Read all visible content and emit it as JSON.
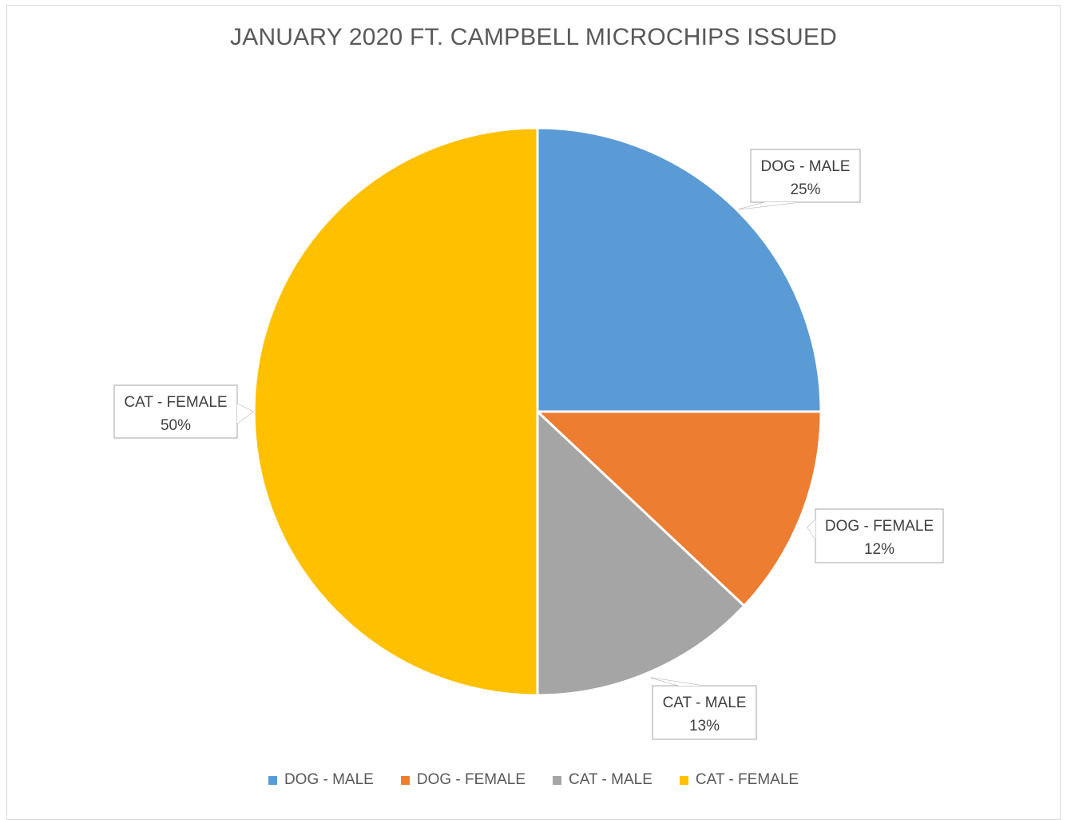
{
  "chart_data": {
    "type": "pie",
    "title": "JANUARY 2020 FT. CAMPBELL MICROCHIPS ISSUED",
    "slices": [
      {
        "label": "DOG - MALE",
        "value": 25,
        "percent_label": "25%",
        "color": "#5b9bd5"
      },
      {
        "label": "DOG - FEMALE",
        "value": 12,
        "percent_label": "12%",
        "color": "#ed7d31"
      },
      {
        "label": "CAT - MALE",
        "value": 13,
        "percent_label": "13%",
        "color": "#a5a5a5"
      },
      {
        "label": "CAT - FEMALE",
        "value": 50,
        "percent_label": "50%",
        "color": "#ffc000"
      }
    ],
    "legend_position": "bottom",
    "start_angle": "12 o'clock, clockwise"
  }
}
